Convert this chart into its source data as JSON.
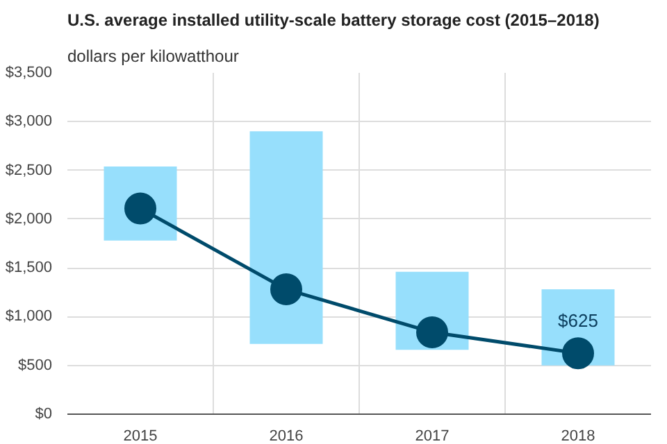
{
  "chart_data": {
    "type": "bar",
    "title": "U.S. average installed utility-scale battery storage cost (2015–2018)",
    "subtitle": "dollars per kilowatthour",
    "categories": [
      "2015",
      "2016",
      "2017",
      "2018"
    ],
    "series": [
      {
        "color": "#97dffc",
        "values": [
          760,
          2180,
          800,
          780
        ],
        "base": [
          1780,
          720,
          660,
          500
        ]
      },
      {
        "type": "line",
        "color": "#004b6b",
        "values": [
          2110,
          1280,
          840,
          625
        ],
        "marker": "circle",
        "value_labels": [
          null,
          null,
          null,
          "$625"
        ]
      }
    ],
    "ylim": [
      0,
      3500
    ],
    "yticks": [
      {
        "value": 0,
        "label": "$0"
      },
      {
        "value": 500,
        "label": "$500"
      },
      {
        "value": 1000,
        "label": "$1,000"
      },
      {
        "value": 1500,
        "label": "$1,500"
      },
      {
        "value": 2000,
        "label": "$2,000"
      },
      {
        "value": 2500,
        "label": "$2,500"
      },
      {
        "value": 3000,
        "label": "$3,000"
      },
      {
        "value": 3500,
        "label": "$3,500"
      }
    ],
    "grid": true
  }
}
